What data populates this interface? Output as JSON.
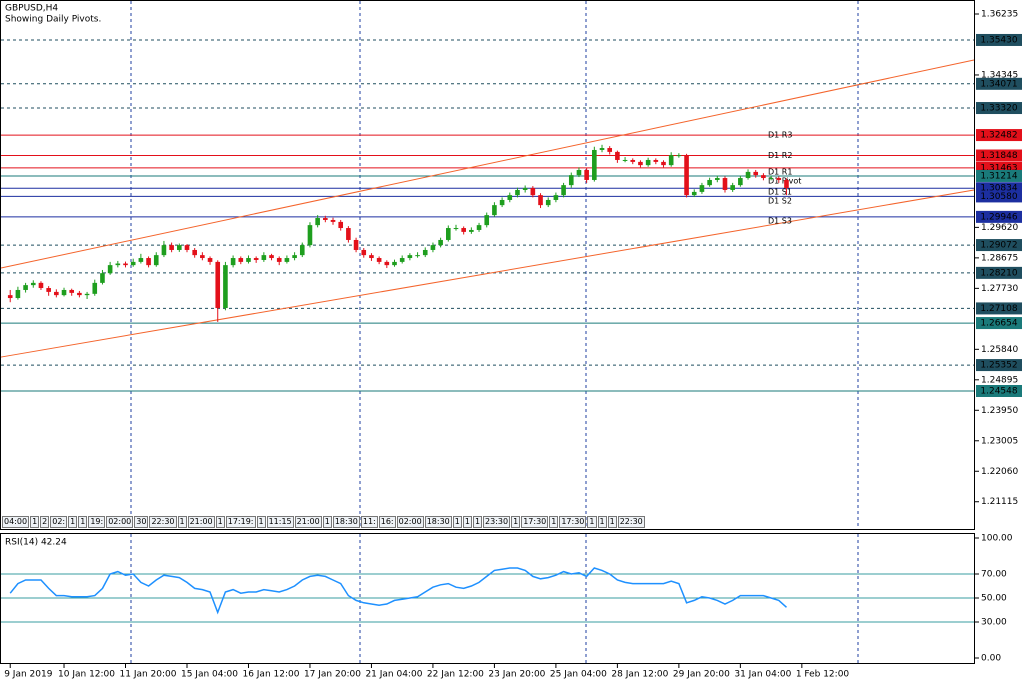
{
  "chart_data": [
    {
      "type": "candlestick",
      "title": "GBPUSD,H4",
      "subtitle": "Showing Daily Pivots.",
      "up_color": "#1e9e1e",
      "down_color": "#e3101a",
      "xlim": [
        -1.2,
        125.4
      ],
      "ylim": [
        1.20239,
        1.36669
      ],
      "open": [
        1.2752,
        1.2743,
        1.2768,
        1.2783,
        1.279,
        1.2774,
        1.2762,
        1.2752,
        1.2768,
        1.2759,
        1.2752,
        1.2756,
        1.279,
        1.282,
        1.2845,
        1.285,
        1.2845,
        1.2855,
        1.2867,
        1.2845,
        1.2876,
        1.2907,
        1.2892,
        1.2907,
        1.2892,
        1.2876,
        1.2867,
        1.2855,
        1.2712,
        1.2845,
        1.2867,
        1.2855,
        1.2867,
        1.2861,
        1.2876,
        1.2867,
        1.2855,
        1.2867,
        1.2876,
        1.2907,
        1.2969,
        1.2991,
        1.2985,
        1.2979,
        1.296,
        1.2923,
        1.2892,
        1.2876,
        1.2867,
        1.2855,
        1.2845,
        1.2855,
        1.2867,
        1.2876,
        1.2876,
        1.2892,
        1.2907,
        1.2923,
        1.296,
        1.296,
        1.2948,
        1.2954,
        1.2969,
        1.3,
        1.3031,
        1.3047,
        1.3062,
        1.3078,
        1.3084,
        1.3062,
        1.3031,
        1.3047,
        1.3062,
        1.3093,
        1.3124,
        1.314,
        1.3109,
        1.3202,
        1.3208,
        1.3196,
        1.3171,
        1.3171,
        1.3165,
        1.3155,
        1.3171,
        1.3165,
        1.3155,
        1.3186,
        1.3186,
        1.3062,
        1.3072,
        1.3093,
        1.3109,
        1.3115,
        1.3078,
        1.3093,
        1.3115,
        1.3134,
        1.3124,
        1.3115,
        1.3115,
        1.3109
      ],
      "high": [
        1.2768,
        1.2778,
        1.279,
        1.2798,
        1.2795,
        1.278,
        1.277,
        1.2775,
        1.2772,
        1.2765,
        1.2762,
        1.28,
        1.283,
        1.2855,
        1.2858,
        1.2856,
        1.2865,
        1.288,
        1.2872,
        1.2885,
        1.292,
        1.2915,
        1.2912,
        1.291,
        1.2898,
        1.2885,
        1.2872,
        1.286,
        1.2855,
        1.2875,
        1.2872,
        1.2875,
        1.2872,
        1.2885,
        1.288,
        1.2872,
        1.2875,
        1.2885,
        1.2915,
        1.2978,
        1.3,
        1.2998,
        1.2992,
        1.2985,
        1.2966,
        1.293,
        1.2898,
        1.2882,
        1.2872,
        1.286,
        1.2862,
        1.2875,
        1.2882,
        1.2885,
        1.29,
        1.2915,
        1.293,
        1.2968,
        1.297,
        1.2965,
        1.2962,
        1.2976,
        1.3008,
        1.304,
        1.3055,
        1.307,
        1.3085,
        1.3092,
        1.309,
        1.3068,
        1.3055,
        1.307,
        1.31,
        1.3132,
        1.3148,
        1.3146,
        1.3212,
        1.3218,
        1.3214,
        1.32,
        1.318,
        1.3176,
        1.317,
        1.3178,
        1.3176,
        1.317,
        1.3195,
        1.3192,
        1.319,
        1.308,
        1.31,
        1.3116,
        1.3122,
        1.312,
        1.31,
        1.3122,
        1.3142,
        1.314,
        1.313,
        1.3122,
        1.312,
        1.3114
      ],
      "low": [
        1.273,
        1.2738,
        1.276,
        1.2775,
        1.2768,
        1.275,
        1.2745,
        1.2748,
        1.275,
        1.2745,
        1.274,
        1.275,
        1.2785,
        1.2815,
        1.2838,
        1.2838,
        1.284,
        1.285,
        1.2838,
        1.284,
        1.287,
        1.2885,
        1.2886,
        1.2885,
        1.2868,
        1.286,
        1.2846,
        1.2669,
        1.2705,
        1.2838,
        1.2848,
        1.285,
        1.2852,
        1.2855,
        1.286,
        1.2845,
        1.285,
        1.286,
        1.287,
        1.29,
        1.2962,
        1.2978,
        1.297,
        1.2952,
        1.2915,
        1.2885,
        1.2868,
        1.2858,
        1.2848,
        1.2836,
        1.284,
        1.285,
        1.286,
        1.2868,
        1.287,
        1.2885,
        1.29,
        1.2918,
        1.2952,
        1.294,
        1.2942,
        1.2948,
        1.2962,
        1.2995,
        1.3025,
        1.304,
        1.3055,
        1.307,
        1.3055,
        1.3022,
        1.3025,
        1.304,
        1.3055,
        1.3085,
        1.3118,
        1.31,
        1.3104,
        1.3195,
        1.3188,
        1.3162,
        1.3164,
        1.3158,
        1.3148,
        1.315,
        1.3158,
        1.3148,
        1.315,
        1.3178,
        1.3055,
        1.3056,
        1.3066,
        1.3088,
        1.3102,
        1.307,
        1.3072,
        1.3088,
        1.311,
        1.3116,
        1.3108,
        1.3108,
        1.31,
        1.3062
      ],
      "close": [
        1.2743,
        1.2768,
        1.2783,
        1.279,
        1.2774,
        1.2762,
        1.2752,
        1.2768,
        1.2759,
        1.2752,
        1.2756,
        1.279,
        1.282,
        1.2845,
        1.285,
        1.2845,
        1.2855,
        1.2867,
        1.2845,
        1.2876,
        1.2907,
        1.2892,
        1.2907,
        1.2892,
        1.2876,
        1.2867,
        1.2855,
        1.2712,
        1.2845,
        1.2867,
        1.2855,
        1.2867,
        1.2861,
        1.2876,
        1.2867,
        1.2855,
        1.2867,
        1.2876,
        1.2907,
        1.2969,
        1.2991,
        1.2985,
        1.2979,
        1.296,
        1.2923,
        1.2892,
        1.2876,
        1.2867,
        1.2855,
        1.2845,
        1.2855,
        1.2867,
        1.2876,
        1.2876,
        1.2892,
        1.2907,
        1.2923,
        1.296,
        1.296,
        1.2948,
        1.2954,
        1.2969,
        1.3,
        1.3031,
        1.3047,
        1.3062,
        1.3078,
        1.3084,
        1.3062,
        1.3031,
        1.3047,
        1.3062,
        1.3093,
        1.3124,
        1.314,
        1.3109,
        1.3202,
        1.3208,
        1.3196,
        1.3171,
        1.3171,
        1.3165,
        1.3155,
        1.3171,
        1.3165,
        1.3155,
        1.3186,
        1.3186,
        1.3062,
        1.3072,
        1.3093,
        1.3109,
        1.3115,
        1.3078,
        1.3093,
        1.3115,
        1.3134,
        1.3124,
        1.3115,
        1.3115,
        1.3109,
        1.3084
      ],
      "yticks": [
        1.36235,
        1.34345,
        {
          "value": 1.2962,
          "label": "1.29620"
        },
        1.28675,
        {
          "value": 1.2773,
          "label": "1.27730"
        },
        {
          "value": 1.2584,
          "label": "1.25840"
        },
        1.24895,
        {
          "value": 1.2395,
          "label": "1.23950"
        },
        1.23005,
        {
          "value": 1.2206,
          "label": "1.22060"
        },
        1.21115
      ],
      "xticks": [
        {
          "value": 0,
          "label": "9 Jan 2019"
        },
        {
          "value": 7,
          "label": "10 Jan 12:00"
        },
        {
          "value": 15,
          "label": "11 Jan 20:00"
        },
        {
          "value": 23,
          "label": "15 Jan 04:00"
        },
        {
          "value": 31,
          "label": "16 Jan 12:00"
        },
        {
          "value": 39,
          "label": "17 Jan 20:00"
        },
        {
          "value": 47,
          "label": "21 Jan 04:00"
        },
        {
          "value": 55,
          "label": "22 Jan 12:00"
        },
        {
          "value": 63,
          "label": "23 Jan 20:00"
        },
        {
          "value": 71,
          "label": "25 Jan 04:00"
        },
        {
          "value": 79,
          "label": "28 Jan 12:00"
        },
        {
          "value": 87,
          "label": "29 Jan 20:00"
        },
        {
          "value": 95,
          "label": "31 Jan 04:00"
        },
        {
          "value": 103,
          "label": "1 Feb 12:00"
        }
      ],
      "levels": [
        {
          "value": 1.3543,
          "label": "1.35430",
          "color": "#1f4e5f",
          "dashed": true
        },
        {
          "value": 1.34071,
          "color": "#1f4e5f",
          "dashed": true
        },
        {
          "value": 1.3332,
          "label": "1.33320",
          "color": "#1f4e5f",
          "dashed": true
        },
        {
          "value": 1.32482,
          "color": "#e3101a",
          "dashed": false
        },
        {
          "value": 1.31848,
          "color": "#e3101a",
          "dashed": false
        },
        {
          "value": 1.31463,
          "color": "#e3101a",
          "dashed": false
        },
        {
          "value": 1.31214,
          "color": "#1a7a7a",
          "dashed": false
        },
        {
          "value": 1.30834,
          "color": "#1c2fa0",
          "dashed": false
        },
        {
          "value": 1.3058,
          "label": "1.30580",
          "color": "#1c2fa0",
          "dashed": false
        },
        {
          "value": 1.29946,
          "color": "#1c2fa0",
          "dashed": false
        },
        {
          "value": 1.29072,
          "color": "#1f4e5f",
          "dashed": true
        },
        {
          "value": 1.2821,
          "label": "1.28210",
          "color": "#1f4e5f",
          "dashed": true
        },
        {
          "value": 1.27108,
          "color": "#1f4e5f",
          "dashed": true
        },
        {
          "value": 1.26654,
          "color": "#1a7a7a",
          "dashed": false
        },
        {
          "value": 1.25352,
          "color": "#1f4e5f",
          "dashed": true
        },
        {
          "value": 1.24548,
          "color": "#1a7a7a",
          "dashed": false
        }
      ],
      "pivots": [
        {
          "name": "D1 R3",
          "value": 1.3248,
          "color": "#c0202a"
        },
        {
          "name": "D1 R2",
          "value": 1.3185,
          "color": "#c0202a"
        },
        {
          "name": "D1 R1",
          "value": 1.3134,
          "color": "#c0202a"
        },
        {
          "name": "D1 Pivot",
          "value": 1.3106,
          "color": "#555555"
        },
        {
          "name": "D1 S1",
          "value": 1.3072,
          "color": "#1c2fa0"
        },
        {
          "name": "D1 S2",
          "value": 1.3044,
          "color": "#1c2fa0"
        },
        {
          "name": "D1 S3",
          "value": 1.2982,
          "color": "#1c2fa0"
        }
      ],
      "trendlines": [
        {
          "x": [
            -1.2,
            125.4
          ],
          "y": [
            1.2836,
            1.3481
          ],
          "color": "#f4642c"
        },
        {
          "x": [
            -1.2,
            125.4
          ],
          "y": [
            1.256,
            1.3078
          ],
          "color": "#f4642c"
        }
      ],
      "time_tags": [
        "04:00",
        "1",
        "2",
        "02:",
        "1",
        "1",
        "19:",
        "02:00",
        "30",
        "22:30",
        "1",
        "21:00",
        "1",
        "17:19:",
        "1",
        "11:15",
        "21:00",
        "1",
        "18:30",
        "11:",
        "16:",
        "02:00",
        "18:30",
        "1",
        "1",
        "1",
        "23:30",
        "1",
        "17:30",
        "1",
        "17:30",
        "1",
        "1",
        "1",
        "22:30"
      ]
    },
    {
      "type": "line",
      "title": "RSI(14) 42.24",
      "color": "#1e90ff",
      "level_color": "#3a9ea0",
      "xlim": [
        -1.2,
        125.4
      ],
      "ylim": [
        0,
        100
      ],
      "levels": [
        70,
        50,
        30
      ],
      "yticks": [
        {
          "value": 100,
          "label": "100.00"
        },
        {
          "value": 70,
          "label": "70.00"
        },
        {
          "value": 50,
          "label": "50.00"
        },
        {
          "value": 30,
          "label": "30.00"
        },
        {
          "value": 0,
          "label": "0.00"
        }
      ],
      "values": [
        54,
        62,
        65,
        65,
        65,
        58,
        52,
        52,
        51,
        51,
        51,
        52,
        58,
        70,
        72,
        69,
        70,
        63,
        60,
        65,
        69,
        68,
        67,
        63,
        58,
        57,
        55,
        38,
        55,
        57,
        54,
        55,
        55,
        57,
        56,
        55,
        57,
        60,
        65,
        68,
        69,
        68,
        65,
        62,
        52,
        48,
        46,
        45,
        44,
        45,
        48,
        49,
        50,
        51,
        55,
        59,
        61,
        62,
        59,
        58,
        60,
        63,
        68,
        73,
        74,
        75,
        75,
        73,
        68,
        66,
        67,
        69,
        72,
        70,
        71,
        68,
        75,
        73,
        70,
        65,
        63,
        62,
        62,
        62,
        62,
        62,
        64,
        62,
        46,
        48,
        51,
        50,
        48,
        45,
        48,
        52,
        52,
        52,
        52,
        50,
        48,
        42.24
      ]
    }
  ]
}
